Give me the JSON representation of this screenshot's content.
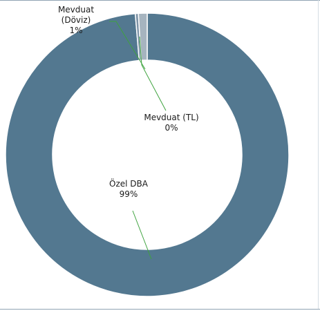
{
  "chart_data": {
    "type": "pie",
    "donut": true,
    "categories": [
      "Özel DBA",
      "Mevduat (TL)",
      "Mevduat (Döviz)"
    ],
    "values": [
      99,
      0,
      1
    ],
    "colors": [
      "#537890",
      "#7d93a6",
      "#a6b4bf"
    ],
    "labels": [
      {
        "lines": [
          "Özel DBA"
        ],
        "pct": "99%"
      },
      {
        "lines": [
          "Mevduat (TL)"
        ],
        "pct": "0%"
      },
      {
        "lines": [
          "Mevduat",
          "(Döviz)"
        ],
        "pct": "1%"
      }
    ],
    "leader_color": "#3ea33e",
    "title": "",
    "legend": "none"
  }
}
